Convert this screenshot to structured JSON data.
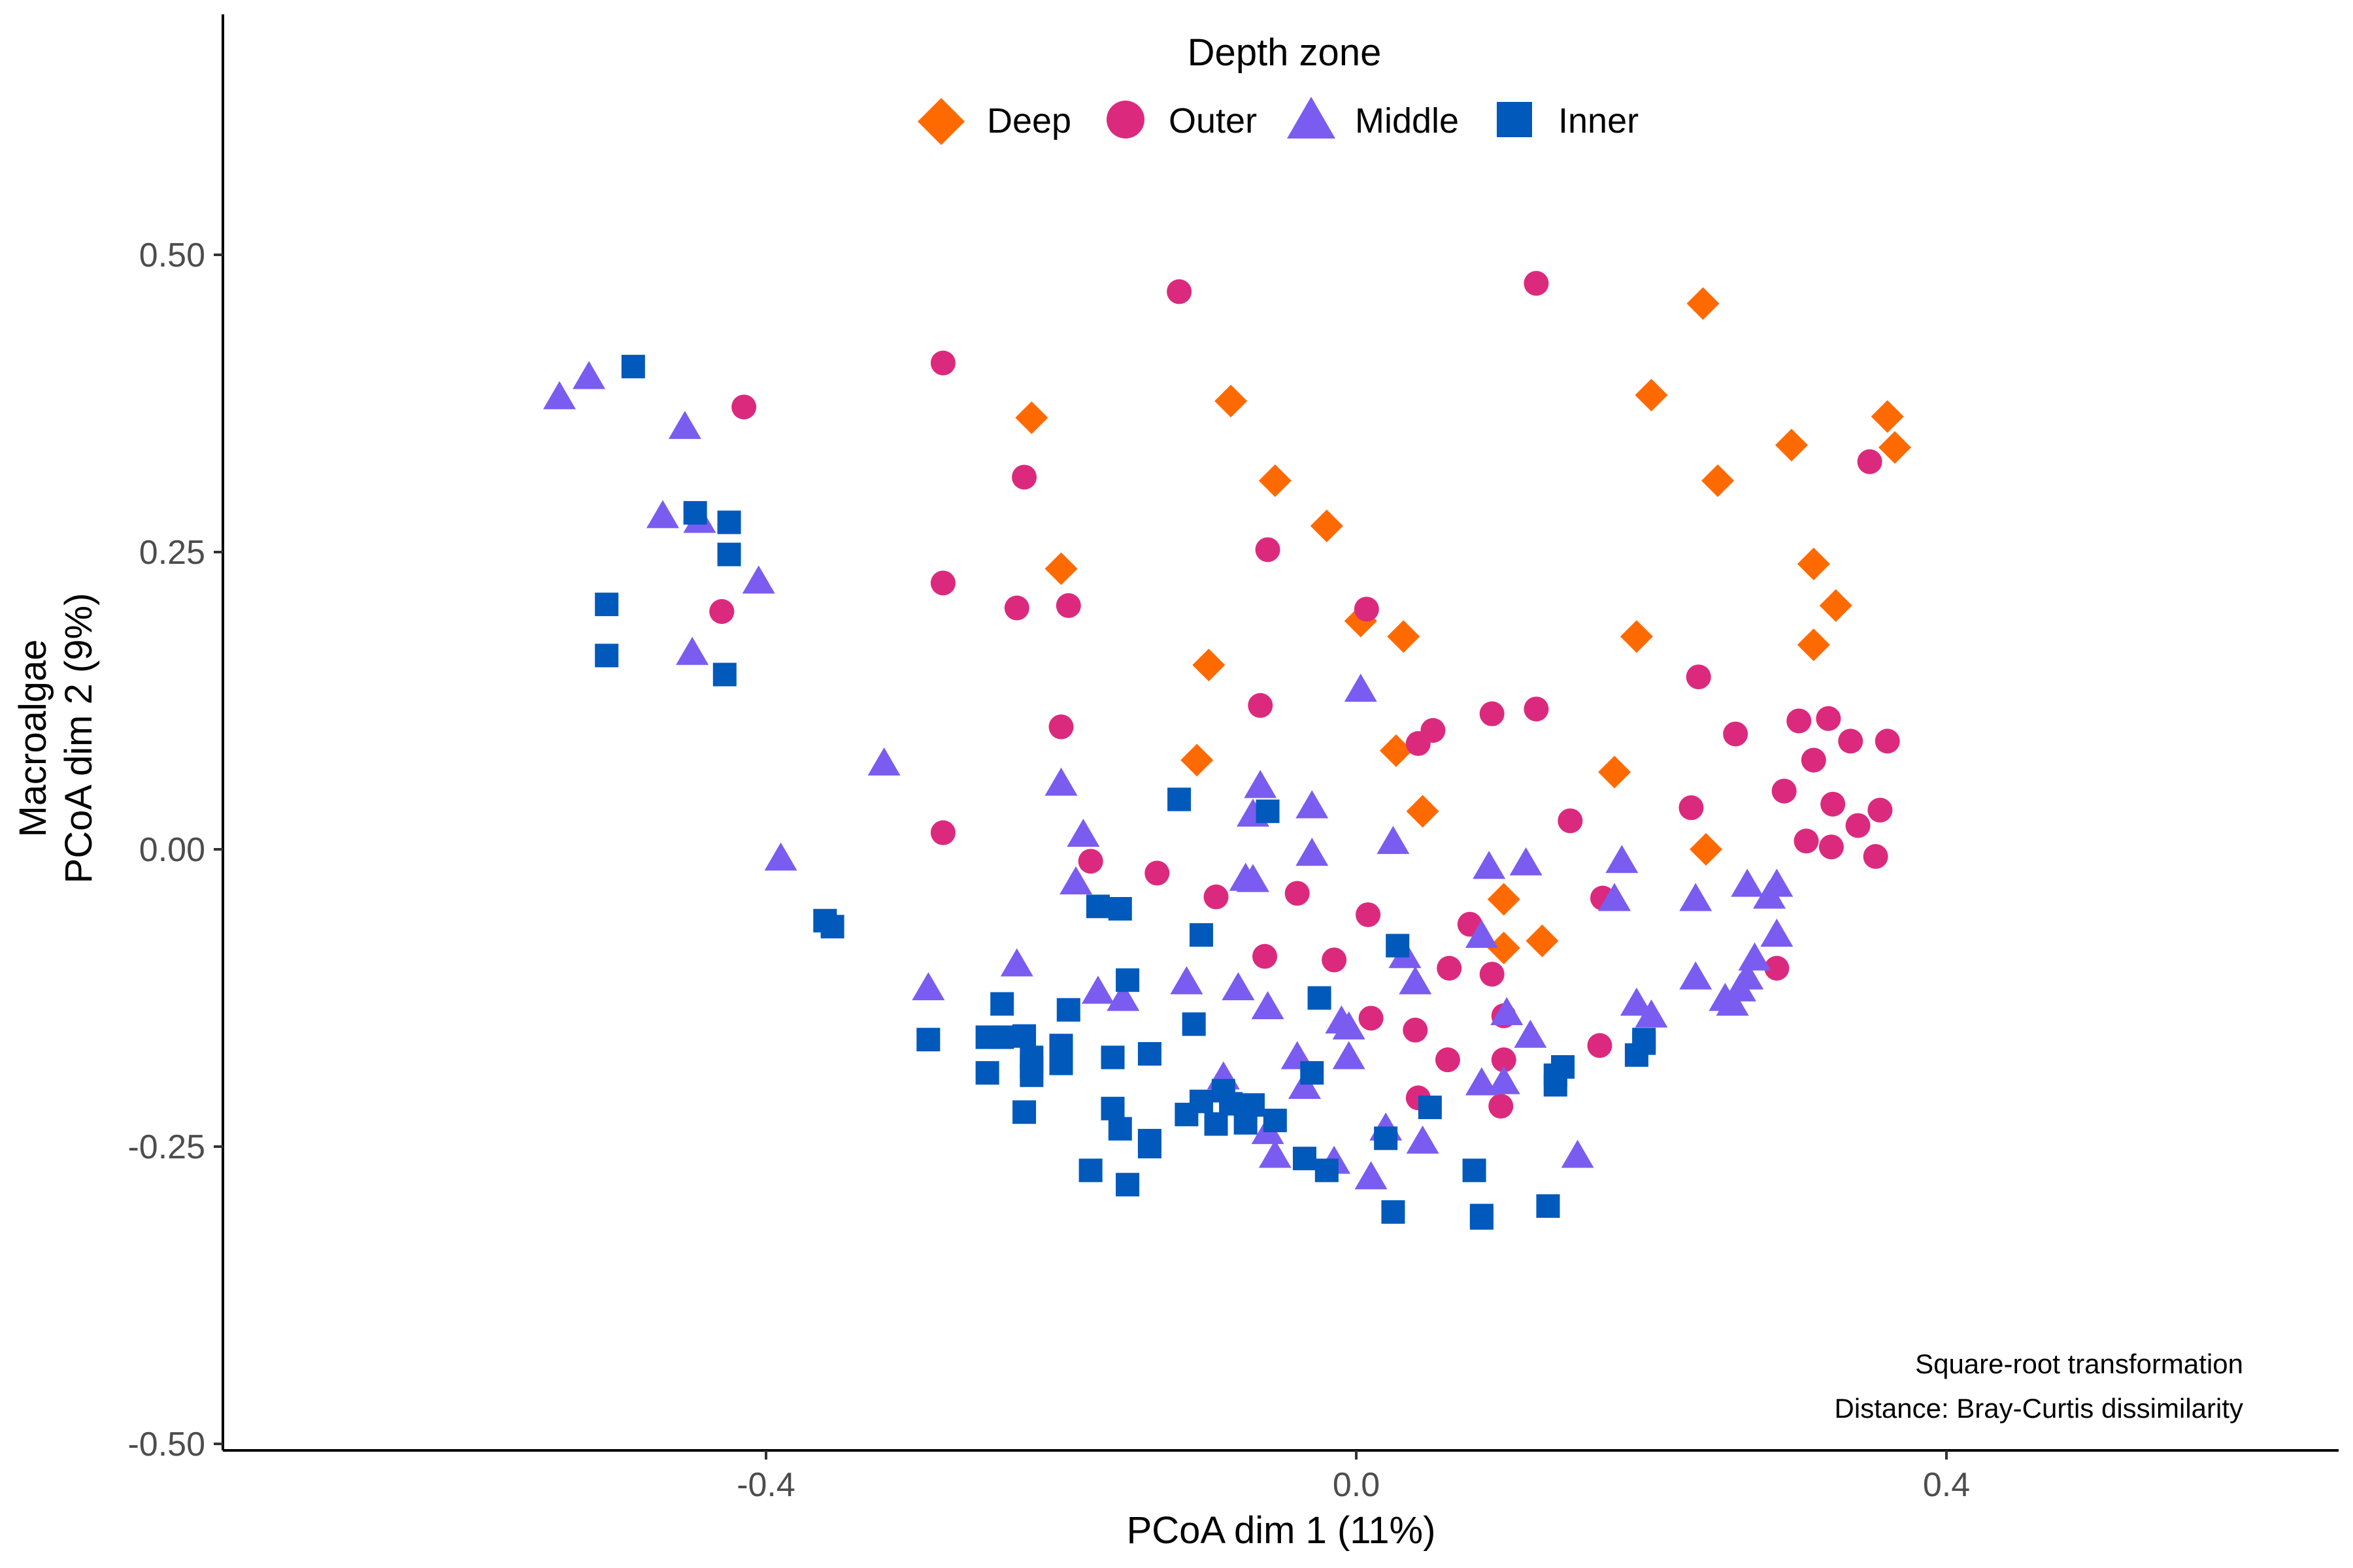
{
  "chart_data": {
    "type": "scatter",
    "xlabel": "PCoA dim 1 (11%)",
    "ylabel_line1": "Macroalgae",
    "ylabel_line2": "PCoA dim 2 (9%)",
    "xlim": [
      -0.77,
      0.67
    ],
    "ylim": [
      -0.51,
      0.71
    ],
    "x_ticks": [
      {
        "value": -0.4,
        "label": "-0.4"
      },
      {
        "value": 0.0,
        "label": "0.0"
      },
      {
        "value": 0.4,
        "label": "0.4"
      }
    ],
    "y_ticks": [
      {
        "value": 0.5,
        "label": "0.50"
      },
      {
        "value": 0.25,
        "label": "0.25"
      },
      {
        "value": 0.0,
        "label": "0.00"
      },
      {
        "value": -0.25,
        "label": "-0.25"
      },
      {
        "value": -0.5,
        "label": "-0.50"
      }
    ],
    "grid": false,
    "legend": {
      "title": "Depth zone",
      "position": "top-center",
      "entries": [
        "Deep",
        "Outer",
        "Middle",
        "Inner"
      ]
    },
    "annotations": [
      "Square-root transformation",
      "Distance: Bray-Curtis dissimilarity"
    ],
    "series": [
      {
        "name": "Deep",
        "shape": "diamond",
        "color": "#FF6A00",
        "points": [
          [
            -0.22,
            0.363
          ],
          [
            -0.085,
            0.377
          ],
          [
            -0.055,
            0.31
          ],
          [
            -0.02,
            0.272
          ],
          [
            -0.2,
            0.236
          ],
          [
            0.235,
            0.459
          ],
          [
            0.2,
            0.382
          ],
          [
            0.295,
            0.34
          ],
          [
            0.36,
            0.364
          ],
          [
            0.365,
            0.338
          ],
          [
            0.245,
            0.31
          ],
          [
            0.31,
            0.24
          ],
          [
            0.325,
            0.205
          ],
          [
            0.31,
            0.172
          ],
          [
            0.19,
            0.179
          ],
          [
            0.003,
            0.192
          ],
          [
            0.032,
            0.179
          ],
          [
            -0.1,
            0.155
          ],
          [
            -0.108,
            0.075
          ],
          [
            0.027,
            0.083
          ],
          [
            0.045,
            0.032
          ],
          [
            0.175,
            0.065
          ],
          [
            0.237,
            0.0
          ],
          [
            0.1,
            -0.042
          ],
          [
            0.1,
            -0.083
          ],
          [
            0.126,
            -0.077
          ]
        ]
      },
      {
        "name": "Outer",
        "shape": "circle",
        "color": "#DB2A7E",
        "points": [
          [
            -0.12,
            0.469
          ],
          [
            0.122,
            0.476
          ],
          [
            -0.28,
            0.409
          ],
          [
            -0.415,
            0.372
          ],
          [
            -0.225,
            0.313
          ],
          [
            -0.28,
            0.224
          ],
          [
            -0.23,
            0.203
          ],
          [
            -0.195,
            0.205
          ],
          [
            -0.43,
            0.2
          ],
          [
            -0.06,
            0.252
          ],
          [
            0.007,
            0.202
          ],
          [
            -0.2,
            0.103
          ],
          [
            -0.065,
            0.121
          ],
          [
            0.052,
            0.1
          ],
          [
            0.092,
            0.114
          ],
          [
            0.122,
            0.118
          ],
          [
            0.042,
            0.089
          ],
          [
            0.232,
            0.145
          ],
          [
            0.257,
            0.097
          ],
          [
            0.3,
            0.108
          ],
          [
            0.32,
            0.11
          ],
          [
            0.335,
            0.091
          ],
          [
            0.36,
            0.091
          ],
          [
            0.31,
            0.075
          ],
          [
            0.29,
            0.049
          ],
          [
            0.323,
            0.038
          ],
          [
            0.355,
            0.033
          ],
          [
            0.34,
            0.02
          ],
          [
            0.227,
            0.035
          ],
          [
            0.305,
            0.007
          ],
          [
            0.322,
            0.002
          ],
          [
            0.352,
            -0.006
          ],
          [
            0.348,
            0.326
          ],
          [
            -0.28,
            0.014
          ],
          [
            -0.18,
            -0.01
          ],
          [
            -0.135,
            -0.02
          ],
          [
            -0.095,
            -0.04
          ],
          [
            -0.04,
            -0.037
          ],
          [
            0.008,
            -0.055
          ],
          [
            0.077,
            -0.063
          ],
          [
            -0.062,
            -0.09
          ],
          [
            -0.015,
            -0.093
          ],
          [
            0.063,
            -0.1
          ],
          [
            0.092,
            -0.105
          ],
          [
            0.145,
            0.024
          ],
          [
            0.167,
            -0.041
          ],
          [
            0.285,
            -0.1
          ],
          [
            0.1,
            -0.14
          ],
          [
            0.01,
            -0.142
          ],
          [
            0.04,
            -0.152
          ],
          [
            0.165,
            -0.165
          ],
          [
            0.1,
            -0.177
          ],
          [
            0.062,
            -0.177
          ],
          [
            0.042,
            -0.209
          ],
          [
            0.098,
            -0.216
          ],
          [
            -0.43,
            0.2
          ]
        ]
      },
      {
        "name": "Middle",
        "shape": "triangle",
        "color": "#7B5CF0",
        "points": [
          [
            -0.54,
            0.38
          ],
          [
            -0.52,
            0.397
          ],
          [
            -0.455,
            0.355
          ],
          [
            -0.47,
            0.28
          ],
          [
            -0.445,
            0.276
          ],
          [
            -0.405,
            0.225
          ],
          [
            -0.45,
            0.165
          ],
          [
            -0.32,
            0.072
          ],
          [
            -0.2,
            0.055
          ],
          [
            -0.39,
            -0.008
          ],
          [
            -0.185,
            0.012
          ],
          [
            -0.065,
            0.053
          ],
          [
            -0.03,
            0.036
          ],
          [
            -0.07,
            0.029
          ],
          [
            -0.03,
            -0.004
          ],
          [
            0.003,
            0.134
          ],
          [
            0.025,
            0.006
          ],
          [
            -0.19,
            -0.028
          ],
          [
            -0.075,
            -0.025
          ],
          [
            -0.07,
            -0.026
          ],
          [
            0.09,
            -0.015
          ],
          [
            0.115,
            -0.012
          ],
          [
            0.18,
            -0.01
          ],
          [
            -0.23,
            -0.097
          ],
          [
            -0.29,
            -0.117
          ],
          [
            -0.175,
            -0.12
          ],
          [
            -0.158,
            -0.126
          ],
          [
            -0.115,
            -0.112
          ],
          [
            -0.08,
            -0.117
          ],
          [
            0.04,
            -0.112
          ],
          [
            0.085,
            -0.073
          ],
          [
            0.033,
            -0.09
          ],
          [
            -0.06,
            -0.133
          ],
          [
            -0.01,
            -0.145
          ],
          [
            -0.005,
            -0.15
          ],
          [
            0.102,
            -0.138
          ],
          [
            0.118,
            -0.157
          ],
          [
            -0.04,
            -0.175
          ],
          [
            -0.005,
            -0.175
          ],
          [
            -0.09,
            -0.192
          ],
          [
            -0.035,
            -0.2
          ],
          [
            0.085,
            -0.197
          ],
          [
            0.1,
            -0.196
          ],
          [
            -0.015,
            -0.263
          ],
          [
            0.01,
            -0.276
          ],
          [
            -0.06,
            -0.238
          ],
          [
            0.02,
            -0.235
          ],
          [
            0.045,
            -0.246
          ],
          [
            -0.055,
            -0.258
          ],
          [
            0.15,
            -0.258
          ],
          [
            0.175,
            -0.042
          ],
          [
            0.23,
            -0.042
          ],
          [
            0.265,
            -0.03
          ],
          [
            0.28,
            -0.04
          ],
          [
            0.285,
            -0.03
          ],
          [
            0.285,
            -0.072
          ],
          [
            0.27,
            -0.092
          ],
          [
            0.19,
            -0.13
          ],
          [
            0.2,
            -0.14
          ],
          [
            0.23,
            -0.108
          ],
          [
            0.255,
            -0.13
          ],
          [
            0.26,
            -0.118
          ],
          [
            0.265,
            -0.108
          ],
          [
            0.25,
            -0.126
          ]
        ]
      },
      {
        "name": "Inner",
        "shape": "square",
        "color": "#0059BB",
        "points": [
          [
            -0.49,
            0.406
          ],
          [
            -0.448,
            0.283
          ],
          [
            -0.425,
            0.275
          ],
          [
            -0.425,
            0.248
          ],
          [
            -0.508,
            0.206
          ],
          [
            -0.508,
            0.163
          ],
          [
            -0.428,
            0.147
          ],
          [
            -0.12,
            0.042
          ],
          [
            -0.06,
            0.032
          ],
          [
            -0.36,
            -0.06
          ],
          [
            -0.355,
            -0.065
          ],
          [
            -0.175,
            -0.048
          ],
          [
            -0.16,
            -0.05
          ],
          [
            -0.105,
            -0.072
          ],
          [
            -0.29,
            -0.16
          ],
          [
            -0.24,
            -0.13
          ],
          [
            -0.24,
            -0.158
          ],
          [
            -0.225,
            -0.157
          ],
          [
            -0.2,
            -0.165
          ],
          [
            -0.25,
            -0.158
          ],
          [
            -0.22,
            -0.175
          ],
          [
            -0.2,
            -0.18
          ],
          [
            -0.22,
            -0.183
          ],
          [
            -0.195,
            -0.135
          ],
          [
            -0.165,
            -0.175
          ],
          [
            -0.14,
            -0.172
          ],
          [
            -0.25,
            -0.188
          ],
          [
            -0.22,
            -0.19
          ],
          [
            -0.155,
            -0.11
          ],
          [
            -0.11,
            -0.147
          ],
          [
            -0.025,
            -0.125
          ],
          [
            0.028,
            -0.081
          ],
          [
            -0.09,
            -0.203
          ],
          [
            -0.105,
            -0.212
          ],
          [
            -0.085,
            -0.214
          ],
          [
            -0.07,
            -0.215
          ],
          [
            -0.055,
            -0.228
          ],
          [
            -0.115,
            -0.223
          ],
          [
            -0.095,
            -0.231
          ],
          [
            -0.075,
            -0.23
          ],
          [
            -0.225,
            -0.221
          ],
          [
            -0.165,
            -0.218
          ],
          [
            -0.16,
            -0.235
          ],
          [
            -0.14,
            -0.245
          ],
          [
            -0.14,
            -0.25
          ],
          [
            -0.03,
            -0.188
          ],
          [
            0.02,
            -0.243
          ],
          [
            0.05,
            -0.217
          ],
          [
            -0.18,
            -0.27
          ],
          [
            -0.155,
            -0.282
          ],
          [
            -0.035,
            -0.26
          ],
          [
            -0.02,
            -0.27
          ],
          [
            0.025,
            -0.305
          ],
          [
            0.08,
            -0.27
          ],
          [
            0.085,
            -0.308
          ],
          [
            0.085,
            -0.31
          ],
          [
            0.13,
            -0.3
          ],
          [
            0.135,
            -0.19
          ],
          [
            0.14,
            -0.183
          ],
          [
            0.135,
            -0.198
          ],
          [
            0.195,
            -0.163
          ],
          [
            0.19,
            -0.173
          ],
          [
            0.195,
            -0.16
          ]
        ]
      }
    ]
  }
}
